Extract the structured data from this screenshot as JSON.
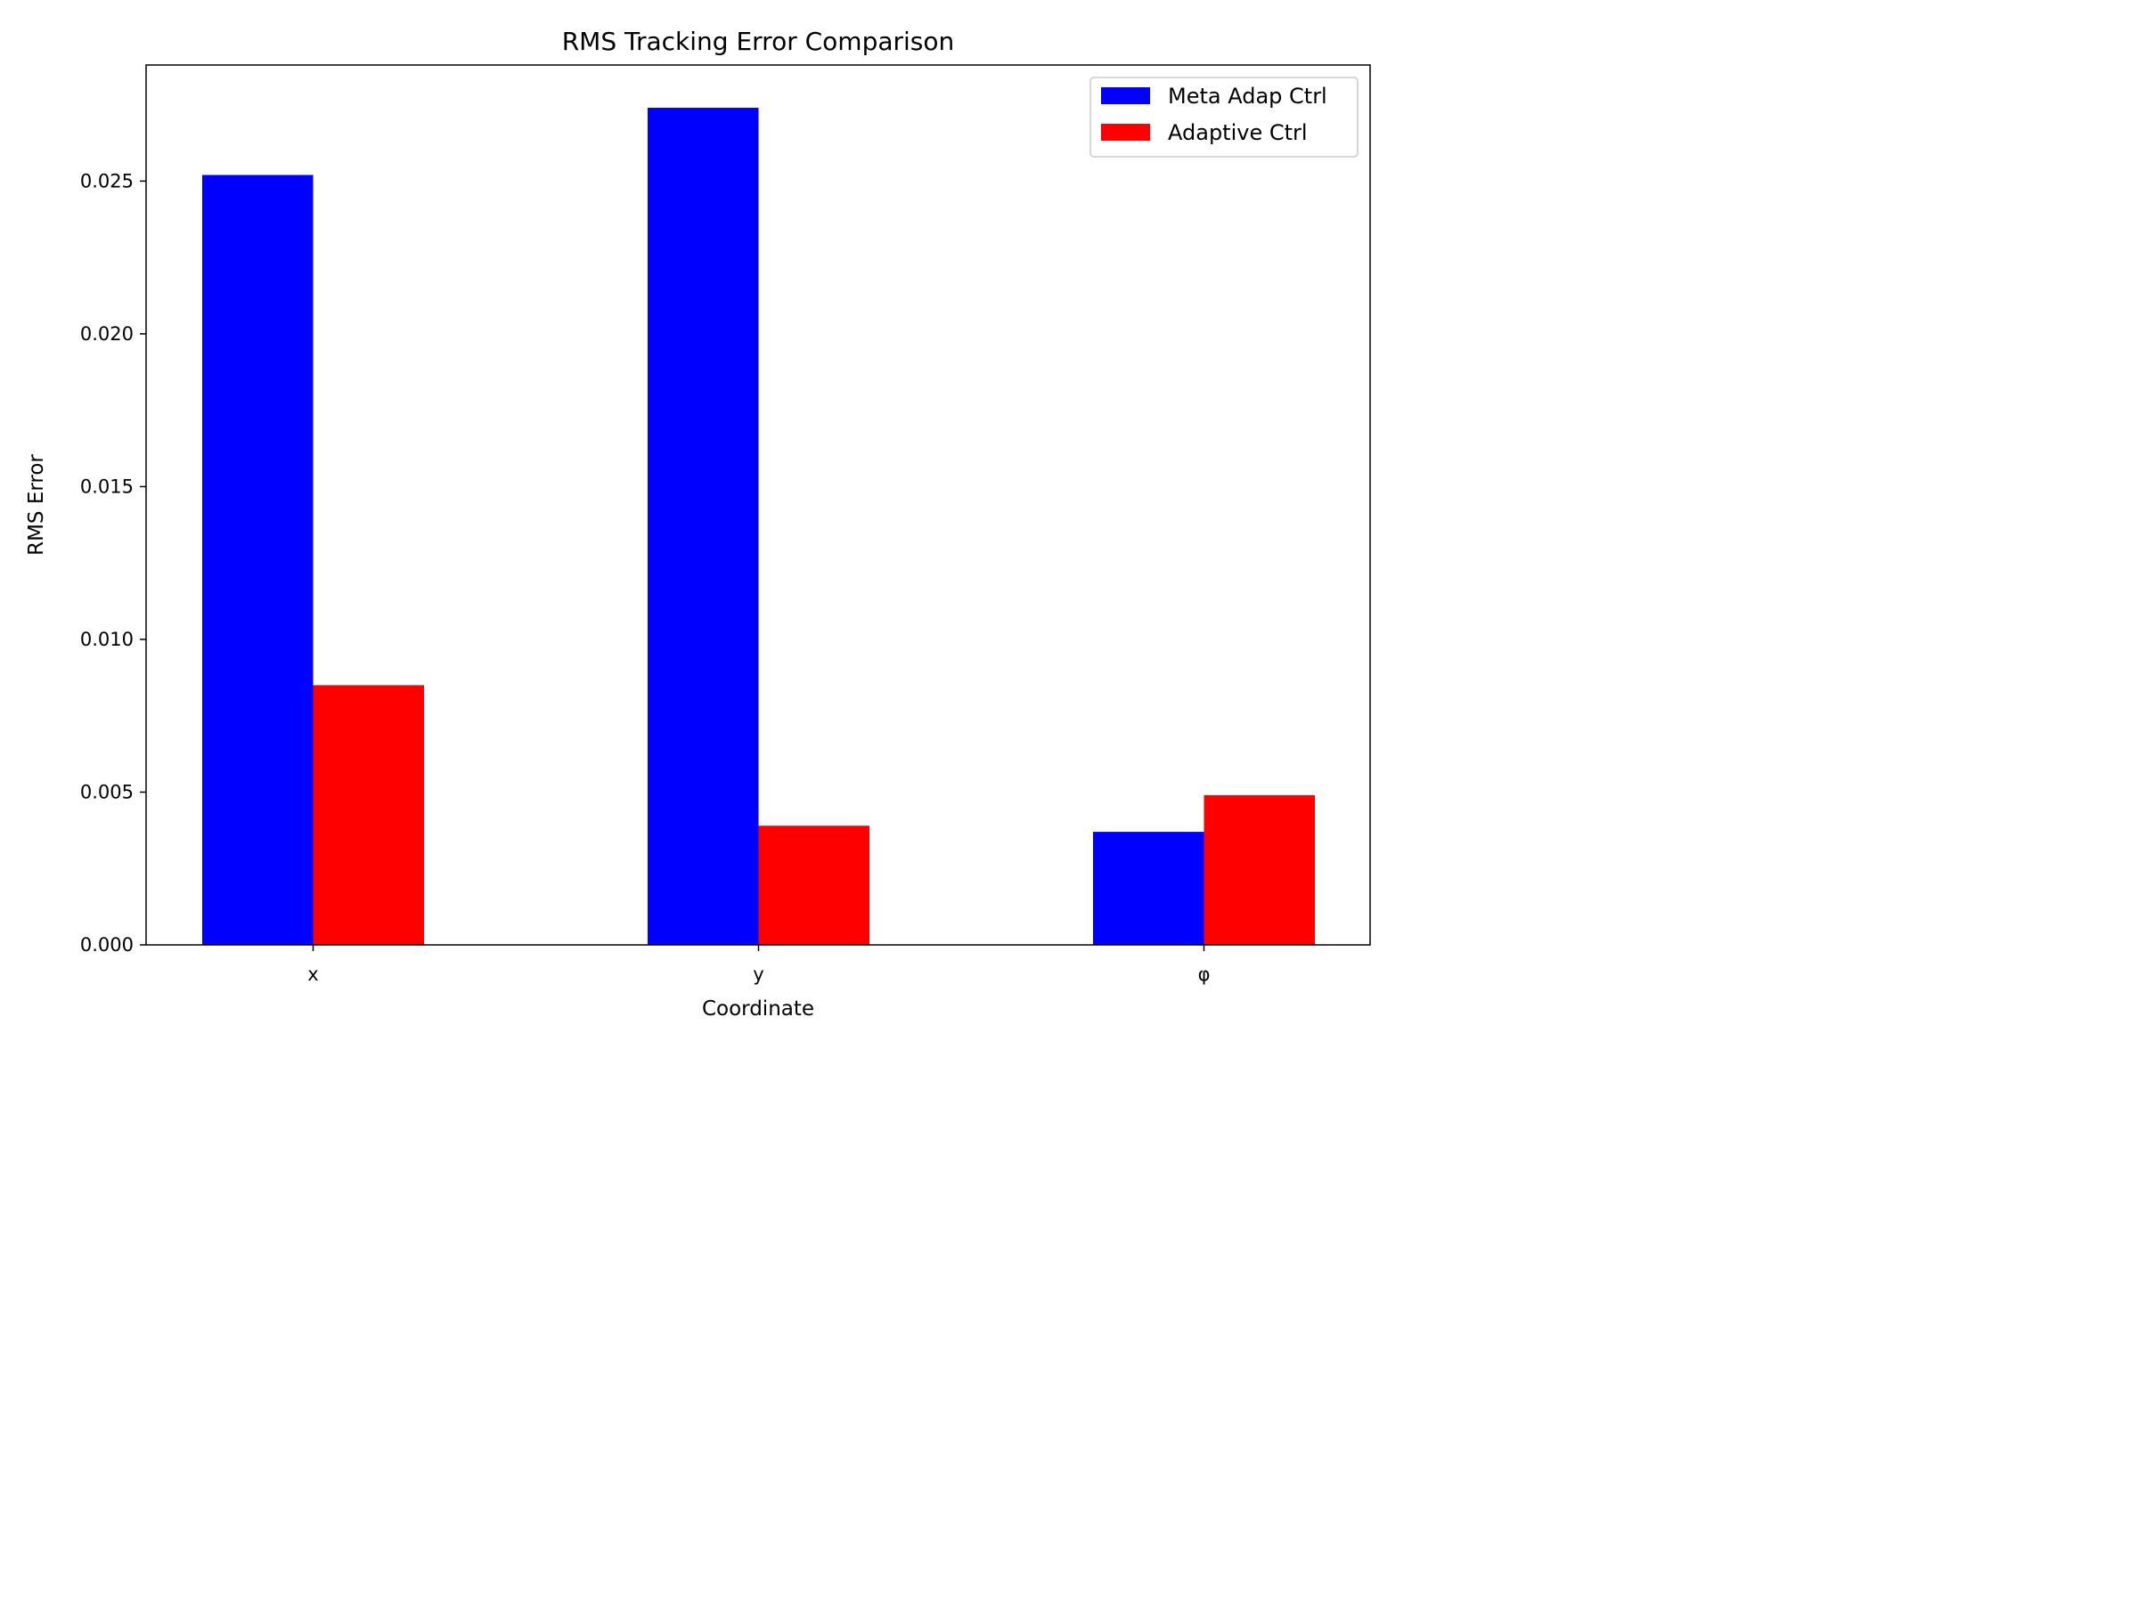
{
  "chart_data": {
    "type": "bar",
    "title": "RMS Tracking Error Comparison",
    "xlabel": "Coordinate",
    "ylabel": "RMS Error",
    "categories": [
      "x",
      "y",
      "φ"
    ],
    "series": [
      {
        "name": "Meta Adap Ctrl",
        "color": "#0000ff",
        "values": [
          0.0252,
          0.0274,
          0.0037
        ]
      },
      {
        "name": "Adaptive Ctrl",
        "color": "#ff0000",
        "values": [
          0.0085,
          0.0039,
          0.0049
        ]
      }
    ],
    "ylim": [
      0,
      0.0288
    ],
    "yticks": [
      "0.000",
      "0.005",
      "0.010",
      "0.015",
      "0.020",
      "0.025"
    ],
    "ytick_values": [
      0,
      0.005,
      0.01,
      0.015,
      0.02,
      0.025
    ],
    "grid": false,
    "legend": "top-right"
  }
}
